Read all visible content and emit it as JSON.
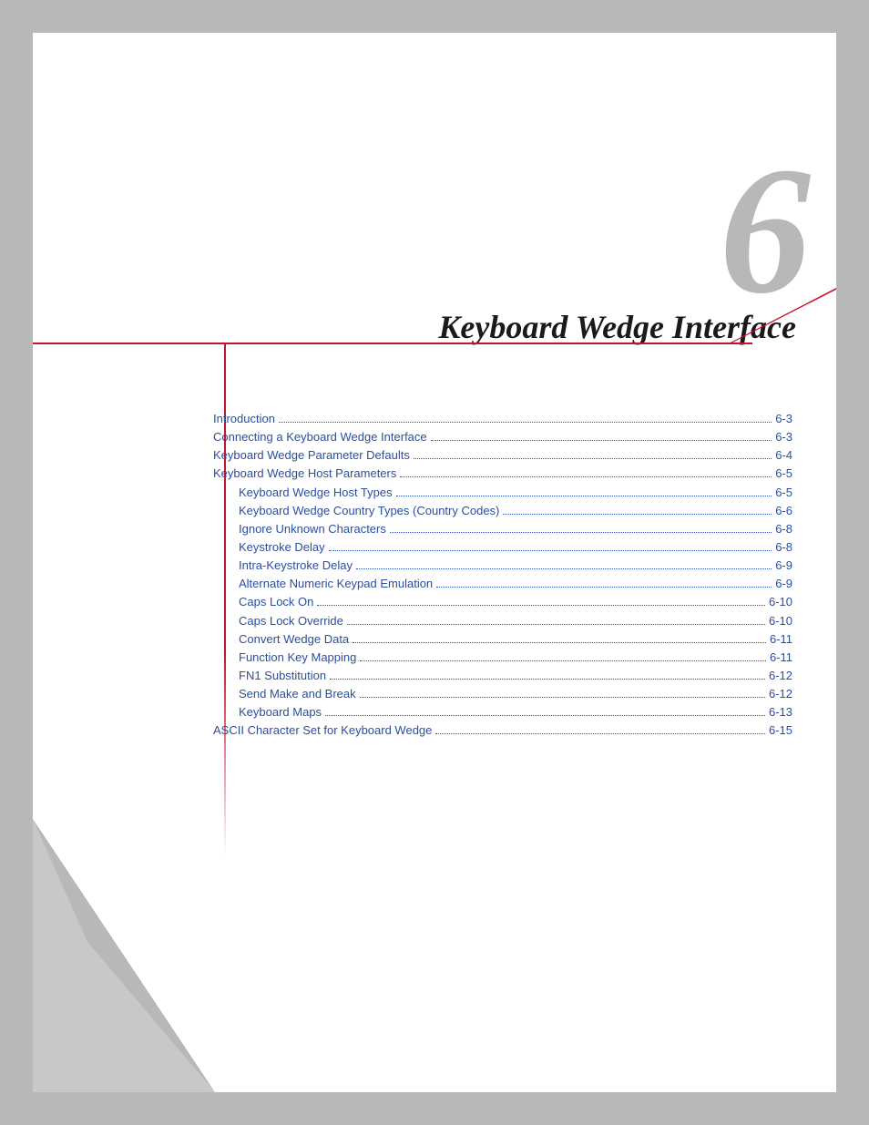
{
  "chapter": {
    "number": "6",
    "title": "Keyboard Wedge Interface"
  },
  "colors": {
    "page_bg": "#ffffff",
    "outer_bg": "#b8b8b8",
    "accent_red": "#c4122f",
    "link_blue": "#2b4ea0",
    "title_black": "#1a1a1a"
  },
  "typography": {
    "title_font": "Georgia italic bold",
    "title_size_pt": 27,
    "chapter_num_size_pt": 150,
    "toc_size_pt": 10
  },
  "toc": [
    {
      "label": "Introduction",
      "page": "6-3",
      "level": 0
    },
    {
      "label": "Connecting a Keyboard Wedge Interface",
      "page": "6-3",
      "level": 0
    },
    {
      "label": "Keyboard Wedge Parameter Defaults",
      "page": "6-4",
      "level": 0
    },
    {
      "label": "Keyboard Wedge Host Parameters",
      "page": "6-5",
      "level": 0
    },
    {
      "label": "Keyboard Wedge Host Types",
      "page": "6-5",
      "level": 1
    },
    {
      "label": "Keyboard Wedge Country Types (Country Codes)",
      "page": "6-6",
      "level": 1
    },
    {
      "label": "Ignore Unknown Characters",
      "page": "6-8",
      "level": 1
    },
    {
      "label": "Keystroke Delay",
      "page": "6-8",
      "level": 1
    },
    {
      "label": "Intra-Keystroke Delay",
      "page": "6-9",
      "level": 1
    },
    {
      "label": "Alternate Numeric Keypad Emulation",
      "page": "6-9",
      "level": 1
    },
    {
      "label": "Caps Lock On",
      "page": "6-10",
      "level": 1
    },
    {
      "label": "Caps Lock Override",
      "page": "6-10",
      "level": 1
    },
    {
      "label": "Convert Wedge Data",
      "page": "6-11",
      "level": 1
    },
    {
      "label": "Function Key Mapping",
      "page": "6-11",
      "level": 1
    },
    {
      "label": "FN1 Substitution",
      "page": "6-12",
      "level": 1
    },
    {
      "label": "Send Make and Break",
      "page": "6-12",
      "level": 1
    },
    {
      "label": "Keyboard Maps",
      "page": "6-13",
      "level": 1
    },
    {
      "label": "ASCII Character Set for Keyboard Wedge",
      "page": "6-15",
      "level": 0
    }
  ]
}
